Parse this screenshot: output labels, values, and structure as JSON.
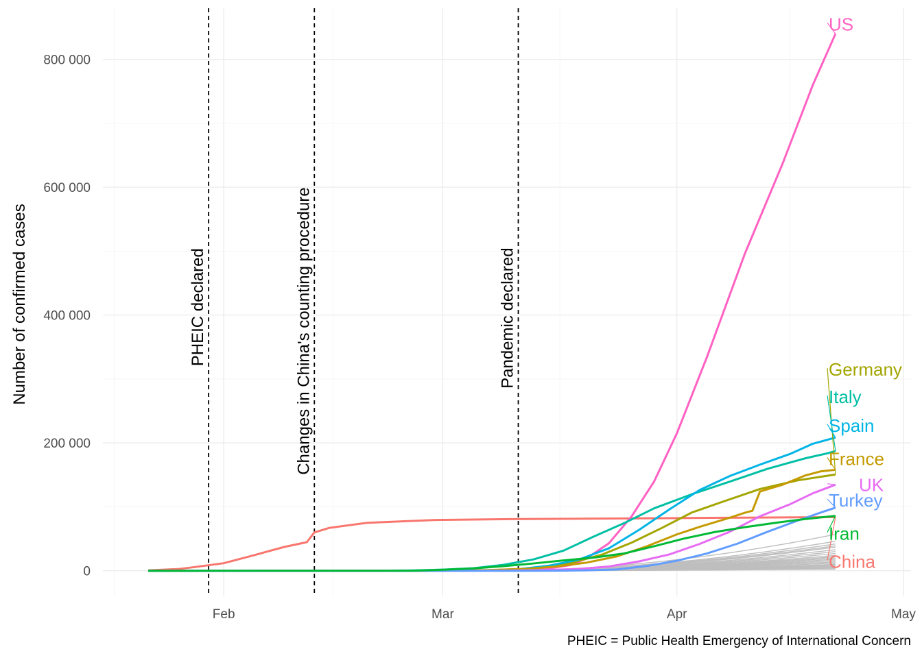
{
  "chart_data": {
    "type": "line",
    "ylabel": "Number of confirmed cases",
    "caption": "PHEIC = Public Health Emergency of International Concern",
    "x_type": "date",
    "xlim": [
      "2020-01-16",
      "2020-05-02"
    ],
    "ylim": [
      -40000,
      880000
    ],
    "x_ticks": [
      {
        "date": "2020-02-01",
        "label": "Feb"
      },
      {
        "date": "2020-03-01",
        "label": "Mar"
      },
      {
        "date": "2020-04-01",
        "label": "Apr"
      },
      {
        "date": "2020-05-01",
        "label": "May"
      }
    ],
    "y_ticks": [
      {
        "value": 0,
        "label": "0"
      },
      {
        "value": 200000,
        "label": "200 000"
      },
      {
        "value": 400000,
        "label": "400 000"
      },
      {
        "value": 600000,
        "label": "600 000"
      },
      {
        "value": 800000,
        "label": "800 000"
      }
    ],
    "grid": true,
    "annotations": [
      {
        "date": "2020-01-30",
        "text": "PHEIC declared",
        "label_y": 320000
      },
      {
        "date": "2020-02-13",
        "text": "Changes in China's counting procedure",
        "label_y": 150000
      },
      {
        "date": "2020-03-11",
        "text": "Pandemic declared",
        "label_y": 285000
      }
    ],
    "series": [
      {
        "name": "China",
        "color": "#F8766D",
        "label_y": 14000,
        "points": [
          [
            "2020-01-22",
            548
          ],
          [
            "2020-01-26",
            2700
          ],
          [
            "2020-01-28",
            5500
          ],
          [
            "2020-02-01",
            11800
          ],
          [
            "2020-02-05",
            24300
          ],
          [
            "2020-02-09",
            37200
          ],
          [
            "2020-02-12",
            44700
          ],
          [
            "2020-02-13",
            59900
          ],
          [
            "2020-02-15",
            67100
          ],
          [
            "2020-02-20",
            75000
          ],
          [
            "2020-02-29",
            79400
          ],
          [
            "2020-03-10",
            80800
          ],
          [
            "2020-03-31",
            82300
          ],
          [
            "2020-04-21",
            83900
          ],
          [
            "2020-04-22",
            83900
          ]
        ]
      },
      {
        "name": "US",
        "color": "#FF61C3",
        "label_y": 855000,
        "points": [
          [
            "2020-01-22",
            1
          ],
          [
            "2020-03-05",
            200
          ],
          [
            "2020-03-10",
            1000
          ],
          [
            "2020-03-15",
            3500
          ],
          [
            "2020-03-18",
            9000
          ],
          [
            "2020-03-20",
            19000
          ],
          [
            "2020-03-23",
            43000
          ],
          [
            "2020-03-26",
            85000
          ],
          [
            "2020-03-29",
            140000
          ],
          [
            "2020-04-01",
            215000
          ],
          [
            "2020-04-05",
            335000
          ],
          [
            "2020-04-10",
            496000
          ],
          [
            "2020-04-15",
            637000
          ],
          [
            "2020-04-19",
            760000
          ],
          [
            "2020-04-22",
            840000
          ]
        ]
      },
      {
        "name": "Germany",
        "color": "#A3A500",
        "label_y": 315000,
        "points": [
          [
            "2020-01-22",
            0
          ],
          [
            "2020-02-27",
            50
          ],
          [
            "2020-03-07",
            800
          ],
          [
            "2020-03-13",
            3700
          ],
          [
            "2020-03-18",
            12300
          ],
          [
            "2020-03-22",
            24900
          ],
          [
            "2020-03-26",
            43900
          ],
          [
            "2020-03-30",
            66900
          ],
          [
            "2020-04-03",
            91200
          ],
          [
            "2020-04-07",
            107700
          ],
          [
            "2020-04-12",
            127900
          ],
          [
            "2020-04-17",
            141400
          ],
          [
            "2020-04-22",
            150600
          ]
        ]
      },
      {
        "name": "Italy",
        "color": "#00BFA4",
        "label_y": 272000,
        "points": [
          [
            "2020-01-22",
            0
          ],
          [
            "2020-02-21",
            20
          ],
          [
            "2020-02-26",
            450
          ],
          [
            "2020-03-01",
            1700
          ],
          [
            "2020-03-05",
            3900
          ],
          [
            "2020-03-09",
            9200
          ],
          [
            "2020-03-13",
            17700
          ],
          [
            "2020-03-17",
            31500
          ],
          [
            "2020-03-21",
            53600
          ],
          [
            "2020-03-25",
            74400
          ],
          [
            "2020-03-29",
            97700
          ],
          [
            "2020-04-03",
            119800
          ],
          [
            "2020-04-08",
            139400
          ],
          [
            "2020-04-13",
            159500
          ],
          [
            "2020-04-18",
            175900
          ],
          [
            "2020-04-21",
            183900
          ],
          [
            "2020-04-22",
            187300
          ]
        ]
      },
      {
        "name": "Spain",
        "color": "#00B4E5",
        "label_y": 227000,
        "points": [
          [
            "2020-01-22",
            0
          ],
          [
            "2020-03-01",
            80
          ],
          [
            "2020-03-07",
            500
          ],
          [
            "2020-03-11",
            2300
          ],
          [
            "2020-03-15",
            7800
          ],
          [
            "2020-03-19",
            17400
          ],
          [
            "2020-03-23",
            35100
          ],
          [
            "2020-03-27",
            64000
          ],
          [
            "2020-03-31",
            95900
          ],
          [
            "2020-04-04",
            126200
          ],
          [
            "2020-04-08",
            148200
          ],
          [
            "2020-04-12",
            166000
          ],
          [
            "2020-04-16",
            182800
          ],
          [
            "2020-04-19",
            198700
          ],
          [
            "2020-04-22",
            208400
          ]
        ]
      },
      {
        "name": "France",
        "color": "#C49A00",
        "label_y": 175000,
        "points": [
          [
            "2020-01-22",
            0
          ],
          [
            "2020-03-01",
            130
          ],
          [
            "2020-03-07",
            950
          ],
          [
            "2020-03-12",
            2900
          ],
          [
            "2020-03-16",
            6600
          ],
          [
            "2020-03-20",
            12600
          ],
          [
            "2020-03-24",
            22300
          ],
          [
            "2020-03-28",
            38100
          ],
          [
            "2020-04-01",
            56900
          ],
          [
            "2020-04-04",
            68600
          ],
          [
            "2020-04-08",
            83000
          ],
          [
            "2020-04-10",
            90700
          ],
          [
            "2020-04-11",
            93800
          ],
          [
            "2020-04-12",
            124000
          ],
          [
            "2020-04-15",
            134600
          ],
          [
            "2020-04-18",
            149100
          ],
          [
            "2020-04-20",
            155400
          ],
          [
            "2020-04-22",
            158000
          ]
        ]
      },
      {
        "name": "UK",
        "color": "#E76BF3",
        "label_y": 134000,
        "points": [
          [
            "2020-01-22",
            0
          ],
          [
            "2020-03-05",
            100
          ],
          [
            "2020-03-10",
            380
          ],
          [
            "2020-03-15",
            1300
          ],
          [
            "2020-03-19",
            2700
          ],
          [
            "2020-03-23",
            6700
          ],
          [
            "2020-03-27",
            14700
          ],
          [
            "2020-03-31",
            25500
          ],
          [
            "2020-04-04",
            41900
          ],
          [
            "2020-04-08",
            61000
          ],
          [
            "2020-04-12",
            85200
          ],
          [
            "2020-04-16",
            104100
          ],
          [
            "2020-04-19",
            121200
          ],
          [
            "2020-04-22",
            134600
          ]
        ]
      },
      {
        "name": "Turkey",
        "color": "#619CFF",
        "label_y": 110000,
        "points": [
          [
            "2020-01-22",
            0
          ],
          [
            "2020-03-12",
            1
          ],
          [
            "2020-03-16",
            50
          ],
          [
            "2020-03-20",
            670
          ],
          [
            "2020-03-24",
            1900
          ],
          [
            "2020-03-28",
            7400
          ],
          [
            "2020-04-01",
            15700
          ],
          [
            "2020-04-05",
            27100
          ],
          [
            "2020-04-09",
            42300
          ],
          [
            "2020-04-13",
            61000
          ],
          [
            "2020-04-17",
            78500
          ],
          [
            "2020-04-20",
            90900
          ],
          [
            "2020-04-22",
            98700
          ]
        ]
      },
      {
        "name": "Iran",
        "color": "#00B935",
        "label_y": 58000,
        "points": [
          [
            "2020-01-22",
            0
          ],
          [
            "2020-02-21",
            20
          ],
          [
            "2020-02-26",
            140
          ],
          [
            "2020-03-01",
            1500
          ],
          [
            "2020-03-05",
            3500
          ],
          [
            "2020-03-09",
            7200
          ],
          [
            "2020-03-13",
            11400
          ],
          [
            "2020-03-17",
            16200
          ],
          [
            "2020-03-21",
            20600
          ],
          [
            "2020-03-25",
            27000
          ],
          [
            "2020-03-29",
            38300
          ],
          [
            "2020-04-02",
            50500
          ],
          [
            "2020-04-06",
            60500
          ],
          [
            "2020-04-10",
            68200
          ],
          [
            "2020-04-14",
            74900
          ],
          [
            "2020-04-18",
            80900
          ],
          [
            "2020-04-22",
            85900
          ]
        ]
      }
    ],
    "other_countries": {
      "color": "#bebebe",
      "final_values": [
        57000,
        46000,
        42000,
        39000,
        37000,
        33000,
        30000,
        27000,
        24000,
        22000,
        20000,
        18000,
        16000,
        14000,
        12000,
        10000,
        8500,
        7000,
        5500,
        4000,
        2500
      ]
    }
  }
}
